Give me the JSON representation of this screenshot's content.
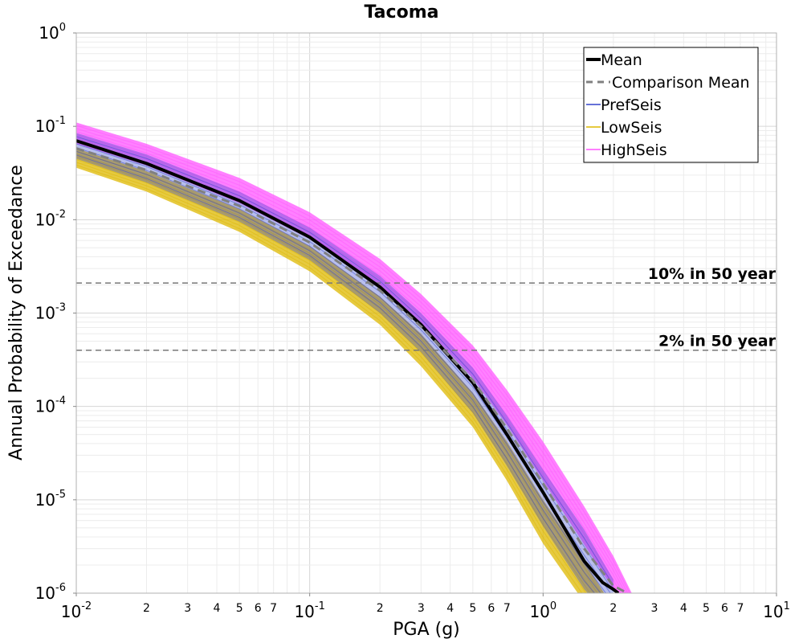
{
  "chart_data": {
    "type": "line",
    "title": "Tacoma",
    "xlabel": "PGA (g)",
    "ylabel": "Annual Probability of Exceedance",
    "x_scale": "log",
    "y_scale": "log",
    "xlim": [
      0.01,
      10
    ],
    "ylim": [
      1e-06,
      1
    ],
    "grid": true,
    "legend_position": "top-right",
    "x_major_ticks": [
      {
        "base": "10",
        "exp": "-2"
      },
      {
        "base": "10",
        "exp": "-1"
      },
      {
        "base": "10",
        "exp": "0"
      },
      {
        "base": "10",
        "exp": "1"
      }
    ],
    "y_major_ticks": [
      {
        "base": "10",
        "exp": "0"
      },
      {
        "base": "10",
        "exp": "-1"
      },
      {
        "base": "10",
        "exp": "-2"
      },
      {
        "base": "10",
        "exp": "-3"
      },
      {
        "base": "10",
        "exp": "-4"
      },
      {
        "base": "10",
        "exp": "-5"
      },
      {
        "base": "10",
        "exp": "-6"
      }
    ],
    "x_minor_tick_labels": [
      "2",
      "3",
      "4",
      "5",
      "6",
      "7"
    ],
    "reference_lines": [
      {
        "label": "10% in 50 year",
        "y": 0.0021
      },
      {
        "label": "2% in 50 year",
        "y": 0.0004
      }
    ],
    "series": [
      {
        "name": "Mean",
        "color": "#000000",
        "style": "solid",
        "x": [
          0.01,
          0.02,
          0.05,
          0.1,
          0.2,
          0.3,
          0.5,
          0.7,
          1.0,
          1.5,
          1.8,
          2.0,
          2.1
        ],
        "y": [
          0.07,
          0.04,
          0.016,
          0.0065,
          0.0019,
          0.00075,
          0.00018,
          5e-05,
          1.2e-05,
          2.2e-06,
          1.3e-06,
          1.1e-06,
          1e-06
        ]
      },
      {
        "name": "Comparison Mean",
        "color": "#808080",
        "style": "dashed",
        "x": [
          0.01,
          0.02,
          0.05,
          0.1,
          0.2,
          0.3,
          0.5,
          0.7,
          1.0,
          1.5,
          2.0,
          2.3
        ],
        "y": [
          0.058,
          0.034,
          0.014,
          0.0057,
          0.00175,
          0.00072,
          0.00019,
          5.8e-05,
          1.5e-05,
          3e-06,
          1.2e-06,
          1e-06
        ]
      },
      {
        "name": "PrefSeis",
        "color": "#3344cc",
        "style": "band",
        "x": [
          0.01,
          0.02,
          0.05,
          0.1,
          0.2,
          0.3,
          0.5,
          0.7,
          1.0,
          1.5,
          2.0
        ],
        "y_high": [
          0.085,
          0.05,
          0.02,
          0.0082,
          0.0025,
          0.001,
          0.00026,
          8e-05,
          2.1e-05,
          4.8e-06,
          1.4e-06
        ],
        "y_low": [
          0.045,
          0.025,
          0.0095,
          0.0037,
          0.001,
          0.00038,
          8.5e-05,
          2.3e-05,
          5.2e-06,
          1.1e-06,
          5e-07
        ]
      },
      {
        "name": "LowSeis",
        "color": "#ddb800",
        "style": "band",
        "x": [
          0.01,
          0.02,
          0.05,
          0.1,
          0.2,
          0.3,
          0.5,
          0.7,
          1.0,
          1.5,
          2.0
        ],
        "y_high": [
          0.058,
          0.033,
          0.013,
          0.0052,
          0.0015,
          0.0006,
          0.00014,
          4.2e-05,
          1e-05,
          2.2e-06,
          7e-07
        ],
        "y_low": [
          0.036,
          0.02,
          0.0074,
          0.0028,
          0.00075,
          0.00027,
          6e-05,
          1.6e-05,
          3.4e-06,
          8e-07,
          3e-07
        ]
      },
      {
        "name": "HighSeis",
        "color": "#ff55ff",
        "style": "band",
        "x": [
          0.01,
          0.02,
          0.05,
          0.1,
          0.2,
          0.3,
          0.5,
          0.7,
          1.0,
          1.5,
          2.0,
          2.4
        ],
        "y_high": [
          0.11,
          0.065,
          0.028,
          0.012,
          0.0038,
          0.0016,
          0.00045,
          0.00015,
          4.2e-05,
          8.5e-06,
          2.5e-06,
          1e-06
        ],
        "y_low": [
          0.065,
          0.038,
          0.015,
          0.0062,
          0.0019,
          0.00078,
          0.0002,
          6.3e-05,
          1.6e-05,
          3.3e-06,
          1.1e-06,
          5e-07
        ]
      }
    ]
  }
}
